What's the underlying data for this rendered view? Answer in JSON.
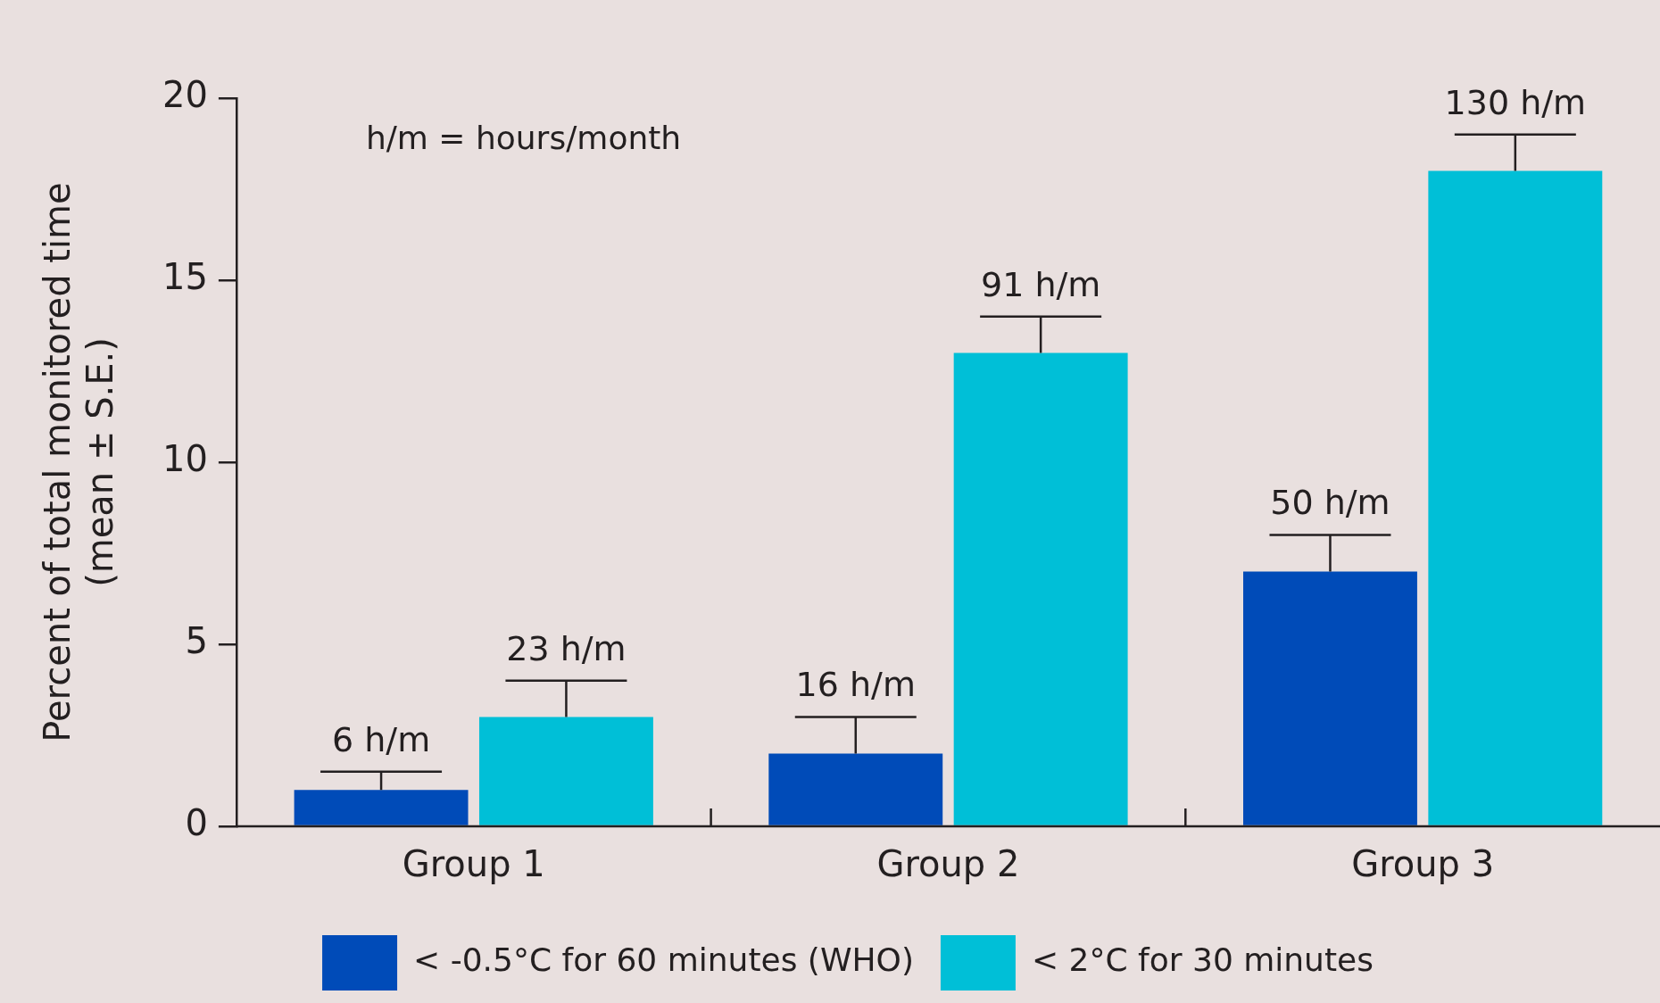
{
  "chart_data": {
    "type": "bar",
    "ylabel": "Percent of total monitored time\n(mean ± S.E.)",
    "categories": [
      "Group 1",
      "Group 2",
      "Group 3"
    ],
    "series": [
      {
        "name": "< -0.5°C for 60 minutes (WHO)",
        "color": "#004bb8",
        "values": [
          1,
          2,
          7
        ],
        "errors": [
          [
            1,
            1.5
          ],
          [
            2,
            3
          ],
          [
            7,
            8
          ]
        ]
      },
      {
        "name": "< 2°C for 30 minutes",
        "color": "#00bfd7",
        "values": [
          3,
          13,
          18
        ],
        "errors": [
          [
            3,
            4
          ],
          [
            13,
            14
          ],
          [
            18,
            19
          ]
        ]
      }
    ],
    "ylim": [
      0,
      20
    ],
    "yticks": [
      0,
      5,
      10,
      15,
      20
    ],
    "grid": false,
    "legend": "bottom",
    "annotations": [
      "h/m = hours/month",
      "6 h/m",
      "23 h/m",
      "16 h/m",
      "91 h/m",
      "50 h/m",
      "130 h/m"
    ]
  }
}
